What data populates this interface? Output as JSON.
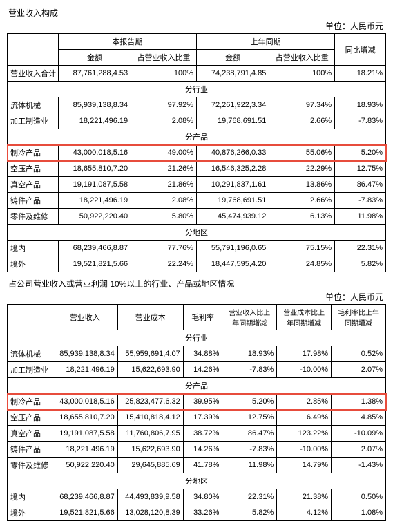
{
  "table1": {
    "title": "营业收入构成",
    "unit": "单位：人民币元",
    "headers": {
      "period_current": "本报告期",
      "period_prev": "上年同期",
      "yoy": "同比增减",
      "amount": "金额",
      "pct": "占营业收入比重"
    },
    "total_row": {
      "label": "营业收入合计",
      "cur_amt": "87,761,288,4.53",
      "cur_pct": "100%",
      "prev_amt": "74,238,791,4.85",
      "prev_pct": "100%",
      "yoy": "18.21%"
    },
    "section_industry": "分行业",
    "industry_rows": [
      {
        "label": "流体机械",
        "cur_amt": "85,939,138,8.34",
        "cur_pct": "97.92%",
        "prev_amt": "72,261,922,3.34",
        "prev_pct": "97.34%",
        "yoy": "18.93%"
      },
      {
        "label": "加工制造业",
        "cur_amt": "18,221,496.19",
        "cur_pct": "2.08%",
        "prev_amt": "19,768,691.51",
        "prev_pct": "2.66%",
        "yoy": "-7.83%"
      }
    ],
    "section_product": "分产品",
    "product_rows": [
      {
        "label": "制冷产品",
        "cur_amt": "43,000,018,5.16",
        "cur_pct": "49.00%",
        "prev_amt": "40,876,266,0.33",
        "prev_pct": "55.06%",
        "yoy": "5.20%",
        "hl": true
      },
      {
        "label": "空压产品",
        "cur_amt": "18,655,810,7.20",
        "cur_pct": "21.26%",
        "prev_amt": "16,546,325,2.28",
        "prev_pct": "22.29%",
        "yoy": "12.75%"
      },
      {
        "label": "真空产品",
        "cur_amt": "19,191,087,5.58",
        "cur_pct": "21.86%",
        "prev_amt": "10,291,837,1.61",
        "prev_pct": "13.86%",
        "yoy": "86.47%"
      },
      {
        "label": "铸件产品",
        "cur_amt": "18,221,496.19",
        "cur_pct": "2.08%",
        "prev_amt": "19,768,691.51",
        "prev_pct": "2.66%",
        "yoy": "-7.83%"
      },
      {
        "label": "零件及维修",
        "cur_amt": "50,922,220.40",
        "cur_pct": "5.80%",
        "prev_amt": "45,474,939.12",
        "prev_pct": "6.13%",
        "yoy": "11.98%"
      }
    ],
    "section_region": "分地区",
    "region_rows": [
      {
        "label": "境内",
        "cur_amt": "68,239,466,8.87",
        "cur_pct": "77.76%",
        "prev_amt": "55,791,196,0.65",
        "prev_pct": "75.15%",
        "yoy": "22.31%"
      },
      {
        "label": "境外",
        "cur_amt": "19,521,821,5.66",
        "cur_pct": "22.24%",
        "prev_amt": "18,447,595,4.20",
        "prev_pct": "24.85%",
        "yoy": "5.82%"
      }
    ]
  },
  "table2": {
    "desc": "占公司营业收入或营业利润 10%以上的行业、产品或地区情况",
    "unit": "单位：人民币元",
    "headers": {
      "rev": "营业收入",
      "cost": "营业成本",
      "gross": "毛利率",
      "rev_yoy": "营业收入比上年同期增减",
      "cost_yoy": "营业成本比上年同期增减",
      "gross_yoy": "毛利率比上年同期增减"
    },
    "section_industry": "分行业",
    "industry_rows": [
      {
        "label": "流体机械",
        "rev": "85,939,138,8.34",
        "cost": "55,959,691,4.07",
        "gross": "34.88%",
        "rev_yoy": "18.93%",
        "cost_yoy": "17.98%",
        "gross_yoy": "0.52%"
      },
      {
        "label": "加工制造业",
        "rev": "18,221,496.19",
        "cost": "15,622,693.90",
        "gross": "14.26%",
        "rev_yoy": "-7.83%",
        "cost_yoy": "-10.00%",
        "gross_yoy": "2.07%"
      }
    ],
    "section_product": "分产品",
    "product_rows": [
      {
        "label": "制冷产品",
        "rev": "43,000,018,5.16",
        "cost": "25,823,477,6.32",
        "gross": "39.95%",
        "rev_yoy": "5.20%",
        "cost_yoy": "2.85%",
        "gross_yoy": "1.38%",
        "hl": true
      },
      {
        "label": "空压产品",
        "rev": "18,655,810,7.20",
        "cost": "15,410,818,4.12",
        "gross": "17.39%",
        "rev_yoy": "12.75%",
        "cost_yoy": "6.49%",
        "gross_yoy": "4.85%"
      },
      {
        "label": "真空产品",
        "rev": "19,191,087,5.58",
        "cost": "11,760,806,7.95",
        "gross": "38.72%",
        "rev_yoy": "86.47%",
        "cost_yoy": "123.22%",
        "gross_yoy": "-10.09%"
      },
      {
        "label": "铸件产品",
        "rev": "18,221,496.19",
        "cost": "15,622,693.90",
        "gross": "14.26%",
        "rev_yoy": "-7.83%",
        "cost_yoy": "-10.00%",
        "gross_yoy": "2.07%"
      },
      {
        "label": "零件及维修",
        "rev": "50,922,220.40",
        "cost": "29,645,885.69",
        "gross": "41.78%",
        "rev_yoy": "11.98%",
        "cost_yoy": "14.79%",
        "gross_yoy": "-1.43%"
      }
    ],
    "section_region": "分地区",
    "region_rows": [
      {
        "label": "境内",
        "rev": "68,239,466,8.87",
        "cost": "44,493,839,9.58",
        "gross": "34.80%",
        "rev_yoy": "22.31%",
        "cost_yoy": "21.38%",
        "gross_yoy": "0.50%"
      },
      {
        "label": "境外",
        "rev": "19,521,821,5.66",
        "cost": "13,028,120,8.39",
        "gross": "33.26%",
        "rev_yoy": "5.82%",
        "cost_yoy": "4.12%",
        "gross_yoy": "1.08%"
      }
    ]
  }
}
